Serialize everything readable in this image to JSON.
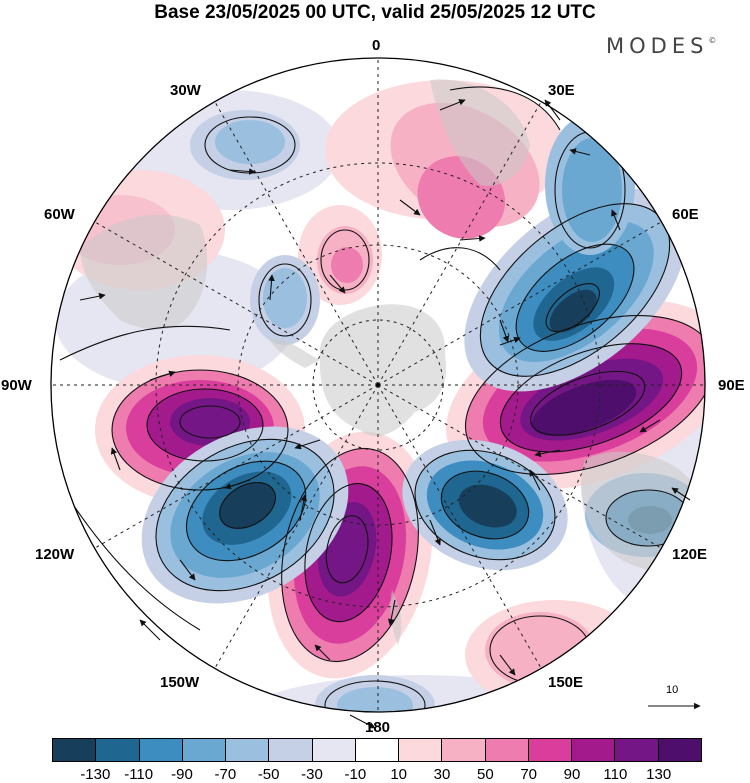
{
  "title": "Base 23/05/2025 00 UTC, valid 25/05/2025 12 UTC",
  "brand": {
    "name": "MODES",
    "mark": "©"
  },
  "longitude_labels": {
    "top": "0",
    "e30": "30E",
    "e60": "60E",
    "e90": "90E",
    "e120": "120E",
    "e150": "150E",
    "bottom": "180",
    "w150": "150W",
    "w120": "120W",
    "w90": "90W",
    "w60": "60W",
    "w30": "30W"
  },
  "reference_vector_label": "10",
  "colorbar": {
    "colors": [
      "#173f5c",
      "#1f6691",
      "#3d8dc1",
      "#6aa8d2",
      "#9bbfdf",
      "#c5d0e6",
      "#e6e6f2",
      "#ffffff",
      "#fbd9dd",
      "#f6b1c4",
      "#ee7cae",
      "#d93e9c",
      "#a31a8c",
      "#741685",
      "#4d0f6b"
    ],
    "labels": [
      "-130",
      "-110",
      "-90",
      "-70",
      "-50",
      "-30",
      "-10",
      "10",
      "30",
      "50",
      "70",
      "90",
      "110",
      "130"
    ]
  },
  "colors": {
    "land": "#c8c8c8",
    "vector": "#111111",
    "grid": "#222222"
  }
}
